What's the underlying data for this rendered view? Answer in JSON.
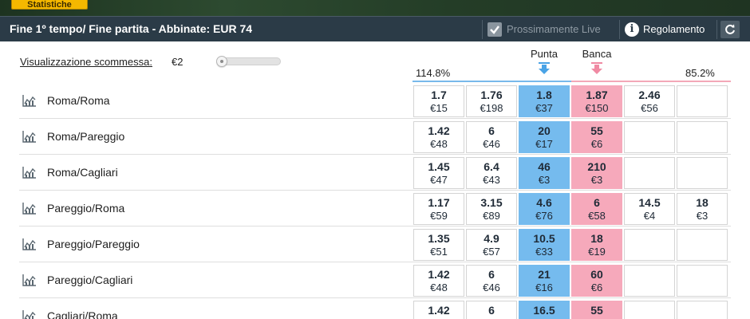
{
  "top_strip": {
    "button_label": "Statistiche"
  },
  "header": {
    "title": "Fine 1º tempo/ Fine partita - Abbinate: EUR 74",
    "live_label": "Prossimamente Live",
    "rules_label": "Regolamento"
  },
  "stake": {
    "label": "Visualizzazione scommessa:",
    "value": "€2",
    "slider_fraction": 0.0
  },
  "book": {
    "back_percent": "114.8%",
    "lay_percent": "85.2%"
  },
  "columns": {
    "back_label": "Punta",
    "lay_label": "Banca"
  },
  "colors": {
    "back": "#75bbee",
    "lay": "#f6a9bb",
    "header": "#2b3b47",
    "accent": "#f5b800"
  },
  "runners": [
    {
      "name": "Roma/Roma",
      "cells": [
        {
          "price": "1.7",
          "size": "€15"
        },
        {
          "price": "1.76",
          "size": "€198"
        },
        {
          "price": "1.8",
          "size": "€37"
        },
        {
          "price": "1.87",
          "size": "€150"
        },
        {
          "price": "2.46",
          "size": "€56"
        },
        {
          "price": "",
          "size": ""
        }
      ]
    },
    {
      "name": "Roma/Pareggio",
      "cells": [
        {
          "price": "1.42",
          "size": "€48"
        },
        {
          "price": "6",
          "size": "€46"
        },
        {
          "price": "20",
          "size": "€17"
        },
        {
          "price": "55",
          "size": "€6"
        },
        {
          "price": "",
          "size": ""
        },
        {
          "price": "",
          "size": ""
        }
      ]
    },
    {
      "name": "Roma/Cagliari",
      "cells": [
        {
          "price": "1.45",
          "size": "€47"
        },
        {
          "price": "6.4",
          "size": "€43"
        },
        {
          "price": "46",
          "size": "€3"
        },
        {
          "price": "210",
          "size": "€3"
        },
        {
          "price": "",
          "size": ""
        },
        {
          "price": "",
          "size": ""
        }
      ]
    },
    {
      "name": "Pareggio/Roma",
      "cells": [
        {
          "price": "1.17",
          "size": "€59"
        },
        {
          "price": "3.15",
          "size": "€89"
        },
        {
          "price": "4.6",
          "size": "€76"
        },
        {
          "price": "6",
          "size": "€58"
        },
        {
          "price": "14.5",
          "size": "€4"
        },
        {
          "price": "18",
          "size": "€3"
        }
      ]
    },
    {
      "name": "Pareggio/Pareggio",
      "cells": [
        {
          "price": "1.35",
          "size": "€51"
        },
        {
          "price": "4.9",
          "size": "€57"
        },
        {
          "price": "10.5",
          "size": "€33"
        },
        {
          "price": "18",
          "size": "€19"
        },
        {
          "price": "",
          "size": ""
        },
        {
          "price": "",
          "size": ""
        }
      ]
    },
    {
      "name": "Pareggio/Cagliari",
      "cells": [
        {
          "price": "1.42",
          "size": "€48"
        },
        {
          "price": "6",
          "size": "€46"
        },
        {
          "price": "21",
          "size": "€16"
        },
        {
          "price": "60",
          "size": "€6"
        },
        {
          "price": "",
          "size": ""
        },
        {
          "price": "",
          "size": ""
        }
      ]
    },
    {
      "name": "Cagliari/Roma",
      "cells": [
        {
          "price": "1.42",
          "size": ""
        },
        {
          "price": "6",
          "size": ""
        },
        {
          "price": "16.5",
          "size": ""
        },
        {
          "price": "55",
          "size": ""
        },
        {
          "price": "",
          "size": ""
        },
        {
          "price": "",
          "size": ""
        }
      ]
    }
  ]
}
